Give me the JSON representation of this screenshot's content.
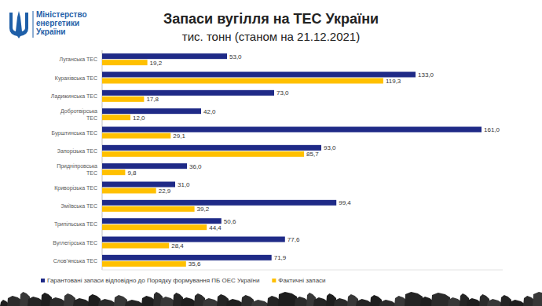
{
  "header": {
    "organization": [
      "Міністерство",
      "енергетики",
      "України"
    ]
  },
  "chart_data": {
    "type": "bar",
    "orientation": "horizontal",
    "title": "Запаси вугілля на ТЕС України",
    "subtitle": "тис. тонн (станом на 21.12.2021)",
    "categories": [
      "Луганська ТЕС",
      "Курахівська ТЕС",
      "Ладижинська ТЕС",
      "Добротвірська ТЕС",
      "Бурштинська ТЕС",
      "Запорізька ТЕС",
      "Придніпровська ТЕС",
      "Криворізька ТЕС",
      "Зміївська ТЕС",
      "Трипільська ТЕС",
      "Вуглегірська ТЕС",
      "Слов’янська ТЕС"
    ],
    "series": [
      {
        "name": "Гарантовані запаси відповідно до Порядку формування ПБ ОЕС України",
        "color": "#1f2a87",
        "values": [
          53.0,
          133.0,
          73.0,
          42.0,
          161.0,
          93.0,
          36.0,
          31.0,
          99.4,
          50.6,
          77.6,
          71.9
        ],
        "value_labels": [
          "53,0",
          "133,0",
          "73,0",
          "42,0",
          "161,0",
          "93,0",
          "36,0",
          "31,0",
          "99,4",
          "50,6",
          "77,6",
          "71,9"
        ]
      },
      {
        "name": "Фактичні запаси",
        "color": "#ffc000",
        "values": [
          19.2,
          119.3,
          17.8,
          12.0,
          29.1,
          85.7,
          9.8,
          22.9,
          39.2,
          44.4,
          28.4,
          35.6
        ],
        "value_labels": [
          "19,2",
          "119,3",
          "17,8",
          "12,0",
          "29,1",
          "85,7",
          "9,8",
          "22,9",
          "39,2",
          "44,4",
          "28,4",
          "35,6"
        ]
      }
    ],
    "xlim": [
      0,
      170
    ],
    "xticks": [],
    "tick_labels": "y",
    "data_labels": true,
    "legend": "bottom",
    "grid": false
  }
}
